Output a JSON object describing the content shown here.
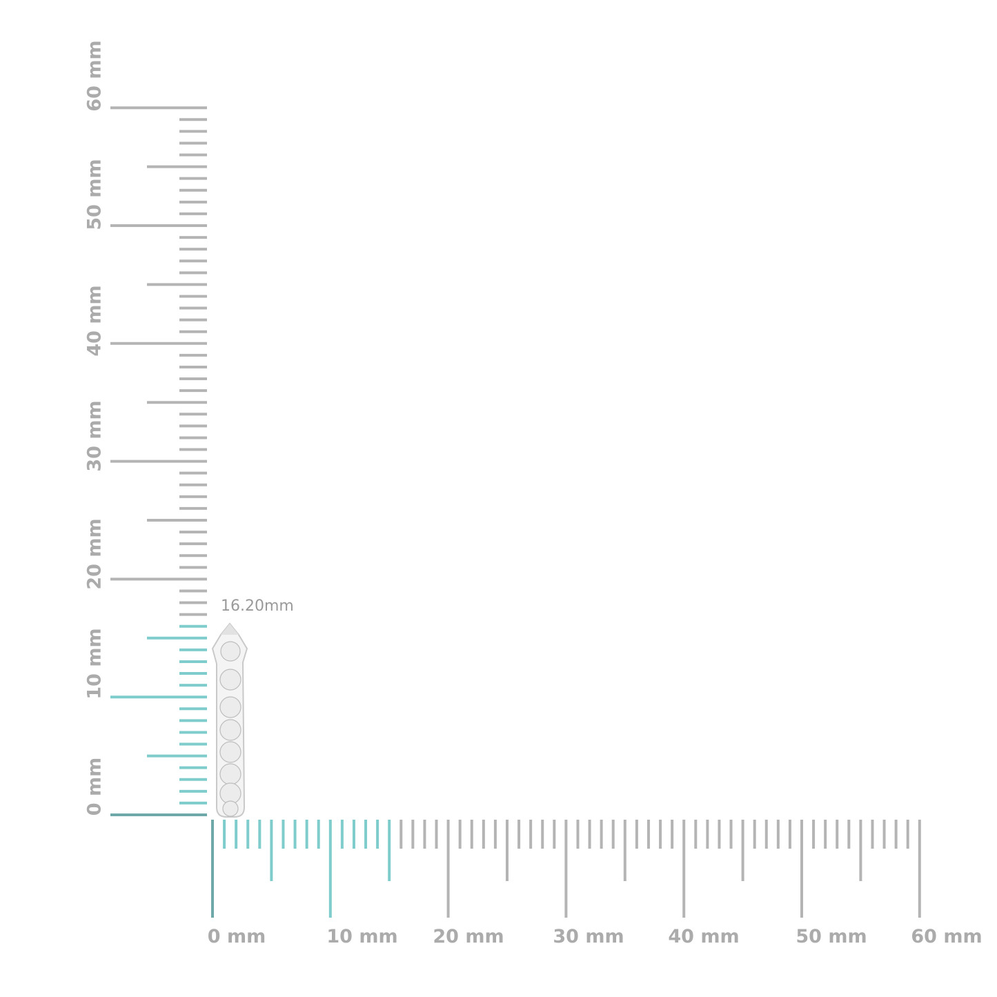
{
  "product": {
    "measurement_label": "16.20mm",
    "measured_height_mm": 16.2
  },
  "rulers": {
    "unit": "mm",
    "range_mm": [
      0,
      60
    ],
    "highlight_vertical_to_mm": 16,
    "highlight_horizontal_to_mm": 15,
    "colors": {
      "tick": "#b4b4b4",
      "highlight": "#7fcccc",
      "zero_line": "#6fa8a8",
      "label": "#ababab"
    },
    "horizontal_labels": [
      "0 mm",
      "10 mm",
      "20 mm",
      "30 mm",
      "40 mm",
      "50 mm",
      "60 mm"
    ],
    "vertical_labels": [
      "0 mm",
      "10 mm",
      "20 mm",
      "30 mm",
      "40 mm",
      "50 mm",
      "60 mm"
    ]
  }
}
